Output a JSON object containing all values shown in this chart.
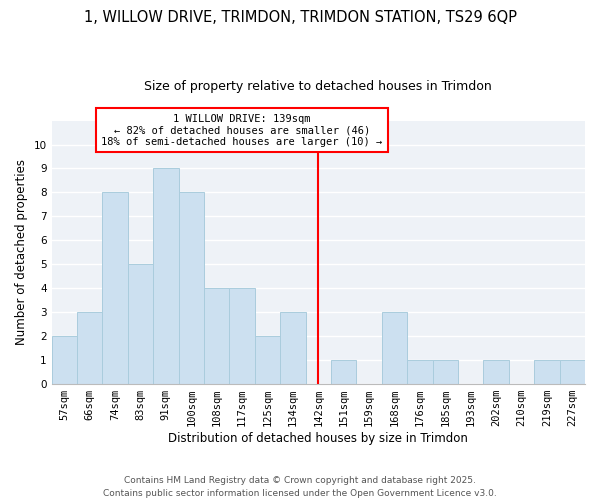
{
  "title": "1, WILLOW DRIVE, TRIMDON, TRIMDON STATION, TS29 6QP",
  "subtitle": "Size of property relative to detached houses in Trimdon",
  "xlabel": "Distribution of detached houses by size in Trimdon",
  "ylabel": "Number of detached properties",
  "bar_labels": [
    "57sqm",
    "66sqm",
    "74sqm",
    "83sqm",
    "91sqm",
    "100sqm",
    "108sqm",
    "117sqm",
    "125sqm",
    "134sqm",
    "142sqm",
    "151sqm",
    "159sqm",
    "168sqm",
    "176sqm",
    "185sqm",
    "193sqm",
    "202sqm",
    "210sqm",
    "219sqm",
    "227sqm"
  ],
  "bar_values": [
    2,
    3,
    8,
    5,
    9,
    8,
    4,
    4,
    2,
    3,
    0,
    1,
    0,
    3,
    1,
    1,
    0,
    1,
    0,
    1,
    1
  ],
  "bar_color": "#cce0f0",
  "bar_edge_color": "#aaccdd",
  "vline_x_idx": 10,
  "vline_color": "red",
  "annotation_line1": "1 WILLOW DRIVE: 139sqm",
  "annotation_line2": "← 82% of detached houses are smaller (46)",
  "annotation_line3": "18% of semi-detached houses are larger (10) →",
  "annotation_box_color": "white",
  "annotation_box_edge": "red",
  "ylim": [
    0,
    11
  ],
  "yticks": [
    0,
    1,
    2,
    3,
    4,
    5,
    6,
    7,
    8,
    9,
    10,
    11
  ],
  "background_color": "#eef2f7",
  "footer": "Contains HM Land Registry data © Crown copyright and database right 2025.\nContains public sector information licensed under the Open Government Licence v3.0.",
  "title_fontsize": 10.5,
  "subtitle_fontsize": 9,
  "xlabel_fontsize": 8.5,
  "ylabel_fontsize": 8.5,
  "tick_fontsize": 7.5,
  "footer_fontsize": 6.5,
  "annot_fontsize": 7.5
}
